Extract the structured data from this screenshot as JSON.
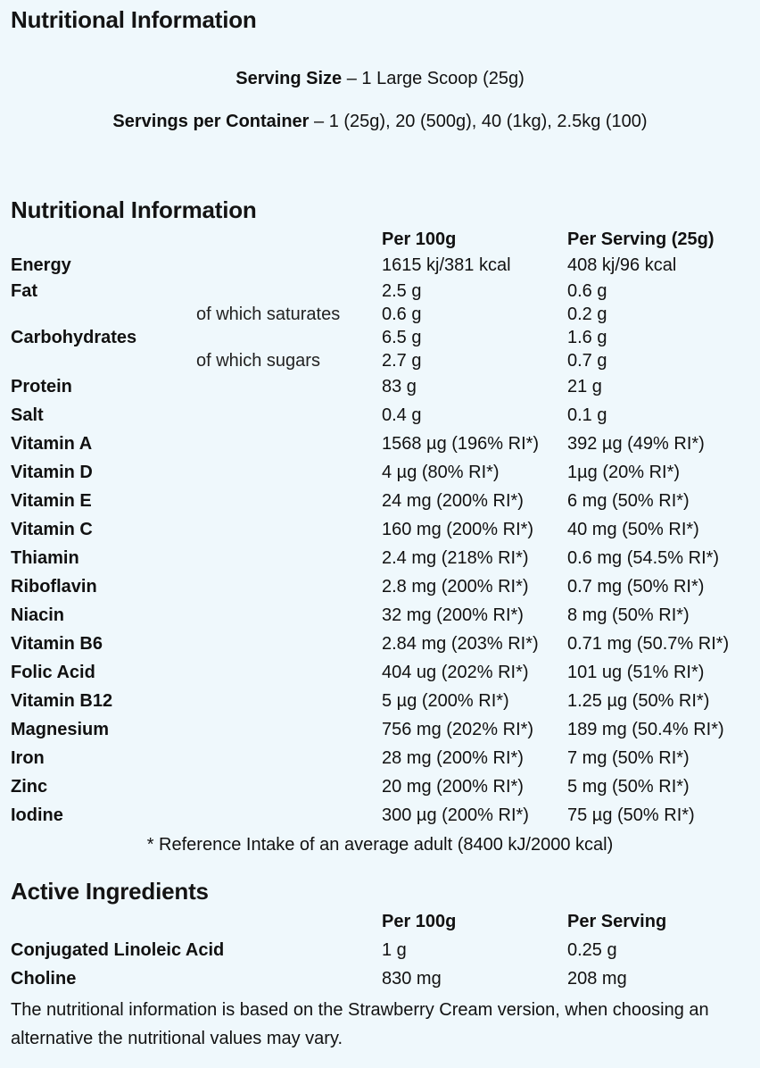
{
  "header": {
    "title": "Nutritional Information",
    "serving_size_label": "Serving Size",
    "serving_size_value": " – 1 Large Scoop (25g)",
    "servings_label": "Servings per Container",
    "servings_value": " – 1 (25g), 20 (500g), 40 (1kg), 2.5kg (100)"
  },
  "nutrition": {
    "title": "Nutritional Information",
    "col_per100": "Per 100g",
    "col_serving": "Per Serving (25g)",
    "rows": [
      {
        "name": "Energy",
        "sub": "",
        "per100": "1615 kj/381 kcal",
        "serving": "408 kj/96 kcal"
      },
      {
        "name": "Fat",
        "sub": "",
        "per100": "2.5 g",
        "serving": "0.6 g"
      },
      {
        "name": "",
        "sub": "of which saturates",
        "per100": "0.6 g",
        "serving": "0.2 g"
      },
      {
        "name": "Carbohydrates",
        "sub": "",
        "per100": "6.5 g",
        "serving": "1.6 g"
      },
      {
        "name": "",
        "sub": "of which sugars",
        "per100": "2.7 g",
        "serving": "0.7 g"
      },
      {
        "name": "Protein",
        "sub": "",
        "per100": "83 g",
        "serving": "21 g"
      },
      {
        "name": "Salt",
        "sub": "",
        "per100": "0.4 g",
        "serving": "0.1 g"
      },
      {
        "name": "Vitamin A",
        "sub": "",
        "per100": "1568 µg (196% RI*)",
        "serving": "392 µg (49% RI*)"
      },
      {
        "name": "Vitamin D",
        "sub": "",
        "per100": "4 µg (80% RI*)",
        "serving": "1µg (20% RI*)"
      },
      {
        "name": "Vitamin E",
        "sub": "",
        "per100": "24 mg (200% RI*)",
        "serving": "6 mg (50% RI*)"
      },
      {
        "name": "Vitamin C",
        "sub": "",
        "per100": "160 mg (200% RI*)",
        "serving": "40 mg (50% RI*)"
      },
      {
        "name": "Thiamin",
        "sub": "",
        "per100": "2.4 mg (218% RI*)",
        "serving": "0.6 mg (54.5% RI*)"
      },
      {
        "name": "Riboflavin",
        "sub": "",
        "per100": "2.8 mg (200% RI*)",
        "serving": "0.7 mg (50% RI*)"
      },
      {
        "name": "Niacin",
        "sub": "",
        "per100": "32 mg (200% RI*)",
        "serving": "8 mg (50% RI*)"
      },
      {
        "name": "Vitamin B6",
        "sub": "",
        "per100": "2.84 mg (203% RI*)",
        "serving": "0.71 mg (50.7% RI*)"
      },
      {
        "name": "Folic Acid",
        "sub": "",
        "per100": "404 ug (202% RI*)",
        "serving": "101 ug (51% RI*)"
      },
      {
        "name": "Vitamin B12",
        "sub": "",
        "per100": "5 µg (200% RI*)",
        "serving": "1.25 µg (50% RI*)"
      },
      {
        "name": "Magnesium",
        "sub": "",
        "per100": "756 mg (202% RI*)",
        "serving": "189 mg (50.4% RI*)"
      },
      {
        "name": "Iron",
        "sub": "",
        "per100": "28 mg (200% RI*)",
        "serving": "7 mg (50% RI*)"
      },
      {
        "name": "Zinc",
        "sub": "",
        "per100": "20 mg (200% RI*)",
        "serving": "5 mg (50% RI*)"
      },
      {
        "name": "Iodine",
        "sub": "",
        "per100": "300 µg (200% RI*)",
        "serving": "75 µg (50% RI*)"
      }
    ],
    "ri_note": "* Reference Intake of an average adult (8400 kJ/2000 kcal)"
  },
  "active": {
    "title": "Active Ingredients",
    "col_per100": "Per 100g",
    "col_serving": "Per Serving",
    "rows": [
      {
        "name": "Conjugated Linoleic Acid",
        "per100": "1 g",
        "serving": "0.25 g"
      },
      {
        "name": "Choline",
        "per100": "830 mg",
        "serving": "208 mg"
      }
    ],
    "footnote": "The nutritional information is based on the Strawberry Cream version, when choosing an alternative the nutritional values may vary."
  }
}
